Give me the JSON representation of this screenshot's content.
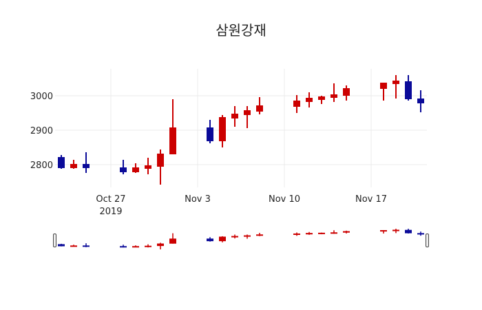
{
  "chart_data": {
    "type": "candlestick",
    "title": "삼원강재",
    "xlabel": "",
    "ylabel": "",
    "ylim": [
      2722,
      3084
    ],
    "y_ticks": [
      2800,
      2900,
      3000
    ],
    "y_tick_labels": [
      "2800",
      "2900",
      "3000"
    ],
    "x_ticks": [
      {
        "date": "2019-10-27",
        "label": "Oct 27",
        "sublabel": "2019"
      },
      {
        "date": "2019-11-03",
        "label": "Nov 3",
        "sublabel": ""
      },
      {
        "date": "2019-11-10",
        "label": "Nov 10",
        "sublabel": ""
      },
      {
        "date": "2019-11-17",
        "label": "Nov 17",
        "sublabel": ""
      }
    ],
    "xlim": [
      "2019-10-22",
      "2019-11-22"
    ],
    "increasing_color": "#cc0000",
    "decreasing_color": "#0a0a99",
    "grid": true,
    "range_slider": true,
    "x": [
      "2019-10-23",
      "2019-10-24",
      "2019-10-25",
      "2019-10-28",
      "2019-10-29",
      "2019-10-30",
      "2019-10-31",
      "2019-11-01",
      "2019-11-04",
      "2019-11-05",
      "2019-11-06",
      "2019-11-07",
      "2019-11-08",
      "2019-11-11",
      "2019-11-12",
      "2019-11-13",
      "2019-11-14",
      "2019-11-15",
      "2019-11-18",
      "2019-11-19",
      "2019-11-20",
      "2019-11-21"
    ],
    "open": [
      2822,
      2790,
      2802,
      2792,
      2778,
      2788,
      2794,
      2830,
      2908,
      2868,
      2934,
      2944,
      2954,
      2968,
      2982,
      2988,
      2994,
      3000,
      3020,
      3034,
      3042,
      2992
    ],
    "high": [
      2828,
      2814,
      2836,
      2814,
      2804,
      2820,
      2844,
      2990,
      2930,
      2944,
      2970,
      2970,
      2996,
      3002,
      3010,
      3000,
      3036,
      3030,
      3038,
      3060,
      3060,
      3016
    ],
    "low": [
      2788,
      2788,
      2776,
      2772,
      2776,
      2772,
      2742,
      2830,
      2862,
      2850,
      2910,
      2906,
      2946,
      2950,
      2966,
      2976,
      2982,
      2986,
      2986,
      2992,
      2986,
      2952
    ],
    "close": [
      2790,
      2802,
      2790,
      2778,
      2792,
      2798,
      2832,
      2908,
      2868,
      2938,
      2948,
      2958,
      2972,
      2986,
      2994,
      2998,
      3004,
      3022,
      3038,
      3044,
      2990,
      2978
    ]
  }
}
